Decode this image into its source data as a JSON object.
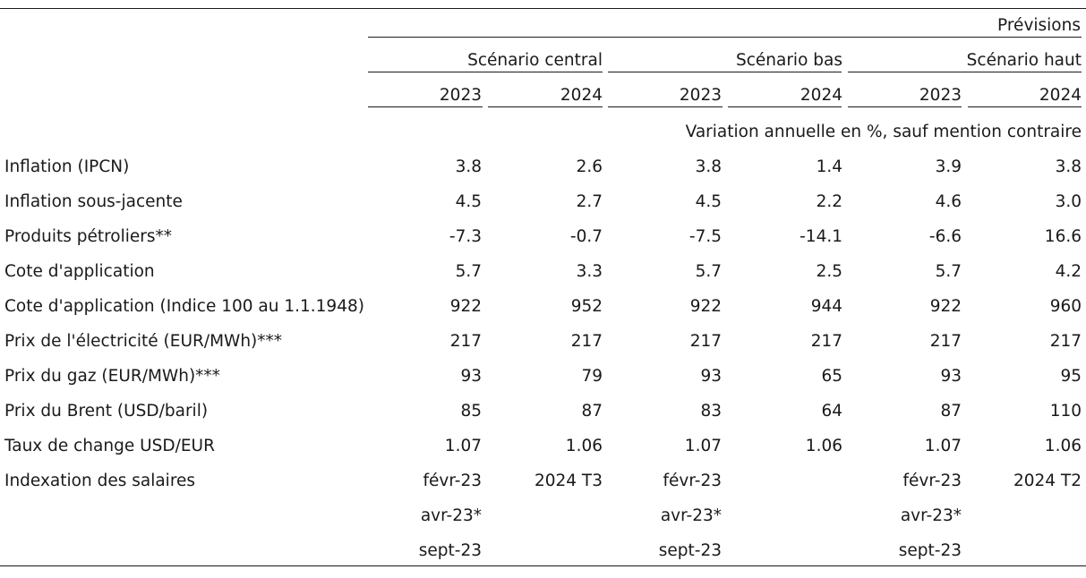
{
  "header": {
    "forecast_label": "Prévisions",
    "scenarios": [
      {
        "label": "Scénario central",
        "years": [
          "2023",
          "2024"
        ]
      },
      {
        "label": "Scénario bas",
        "years": [
          "2023",
          "2024"
        ]
      },
      {
        "label": "Scénario haut",
        "years": [
          "2023",
          "2024"
        ]
      }
    ],
    "unit_note": "Variation annuelle en %, sauf mention contraire"
  },
  "rows": [
    {
      "label": "Inflation (IPCN)",
      "values": [
        "3.8",
        "2.6",
        "3.8",
        "1.4",
        "3.9",
        "3.8"
      ]
    },
    {
      "label": "Inflation sous-jacente",
      "values": [
        "4.5",
        "2.7",
        "4.5",
        "2.2",
        "4.6",
        "3.0"
      ]
    },
    {
      "label": "Produits pétroliers**",
      "values": [
        "-7.3",
        "-0.7",
        "-7.5",
        "-14.1",
        "-6.6",
        "16.6"
      ]
    },
    {
      "label": "Cote d'application",
      "values": [
        "5.7",
        "3.3",
        "5.7",
        "2.5",
        "5.7",
        "4.2"
      ]
    },
    {
      "label": "Cote d'application (Indice 100 au 1.1.1948)",
      "values": [
        "922",
        "952",
        "922",
        "944",
        "922",
        "960"
      ]
    },
    {
      "label": "Prix de l'électricité (EUR/MWh)***",
      "values": [
        "217",
        "217",
        "217",
        "217",
        "217",
        "217"
      ]
    },
    {
      "label": "Prix du gaz (EUR/MWh)***",
      "values": [
        "93",
        "79",
        "93",
        "65",
        "93",
        "95"
      ]
    },
    {
      "label": "Prix du Brent (USD/baril)",
      "values": [
        "85",
        "87",
        "83",
        "64",
        "87",
        "110"
      ]
    },
    {
      "label": "Taux de change USD/EUR",
      "values": [
        "1.07",
        "1.06",
        "1.07",
        "1.06",
        "1.07",
        "1.06"
      ]
    },
    {
      "label": "Indexation des salaires",
      "values": [
        "févr-23",
        "2024 T3",
        "févr-23",
        "",
        "févr-23",
        "2024 T2"
      ]
    },
    {
      "label": "",
      "values": [
        "avr-23*",
        "",
        "avr-23*",
        "",
        "avr-23*",
        ""
      ]
    },
    {
      "label": "",
      "values": [
        "sept-23",
        "",
        "sept-23",
        "",
        "sept-23",
        ""
      ]
    }
  ]
}
